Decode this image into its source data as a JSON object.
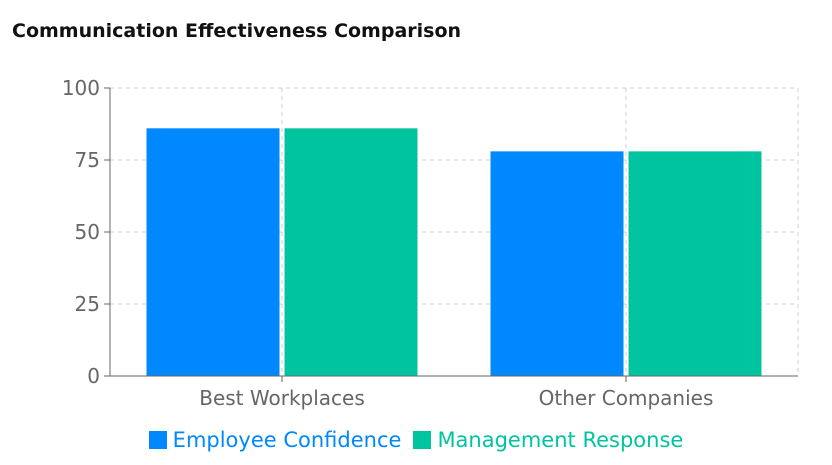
{
  "title": "Communication Effectiveness Comparison",
  "colors": {
    "axis": "#666666",
    "grid": "#cccccc",
    "background": "#ffffff"
  },
  "chart_data": {
    "type": "bar",
    "title": "Communication Effectiveness Comparison",
    "categories": [
      "Best Workplaces",
      "Other Companies"
    ],
    "series": [
      {
        "name": "Employee Confidence",
        "values": [
          86,
          78
        ],
        "color": "#0088FE"
      },
      {
        "name": "Management Response",
        "values": [
          86,
          78
        ],
        "color": "#00C49F"
      }
    ],
    "ylim": [
      0,
      100
    ],
    "yticks": [
      0,
      25,
      50,
      75,
      100
    ],
    "xlabel": "",
    "ylabel": "",
    "grid": true,
    "legend": "bottom"
  }
}
